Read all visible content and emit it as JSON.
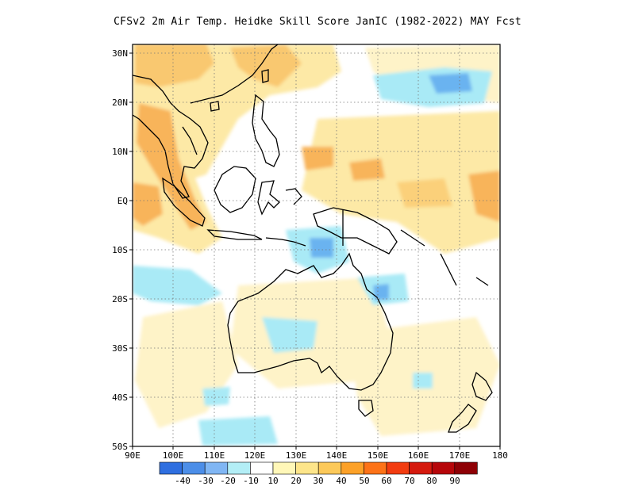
{
  "title": "CFSv2  2m Air Temp. Heidke Skill Score JanIC (1982-2022) MAY Fcst",
  "map": {
    "lon_labels": [
      "90E",
      "100E",
      "110E",
      "120E",
      "130E",
      "140E",
      "150E",
      "160E",
      "170E",
      "180"
    ],
    "lat_labels": [
      "30N",
      "20N",
      "10N",
      "EQ",
      "10S",
      "20S",
      "30S",
      "40S",
      "50S"
    ],
    "lon_range": [
      90,
      180
    ],
    "lat_range": [
      -50,
      32
    ],
    "grid": "dotted",
    "colors": {
      "coast": "#000000",
      "land_positive": "#fde9a6",
      "strong_positive": "#f9b64f",
      "negative": "#a9eaf6",
      "strong_negative": "#6ab3f0"
    }
  },
  "colorbar": {
    "labels": [
      "-40",
      "-30",
      "-20",
      "-10",
      "10",
      "20",
      "30",
      "40",
      "50",
      "60",
      "70",
      "80",
      "90"
    ],
    "colors": [
      "#2f6fe0",
      "#4c8ee8",
      "#80b6f4",
      "#b3eef6",
      "#ffffff",
      "#fff7b8",
      "#fde58a",
      "#fcc95a",
      "#fca128",
      "#fd7318",
      "#f23c10",
      "#d51a0e",
      "#b6060a",
      "#8e0005"
    ]
  }
}
